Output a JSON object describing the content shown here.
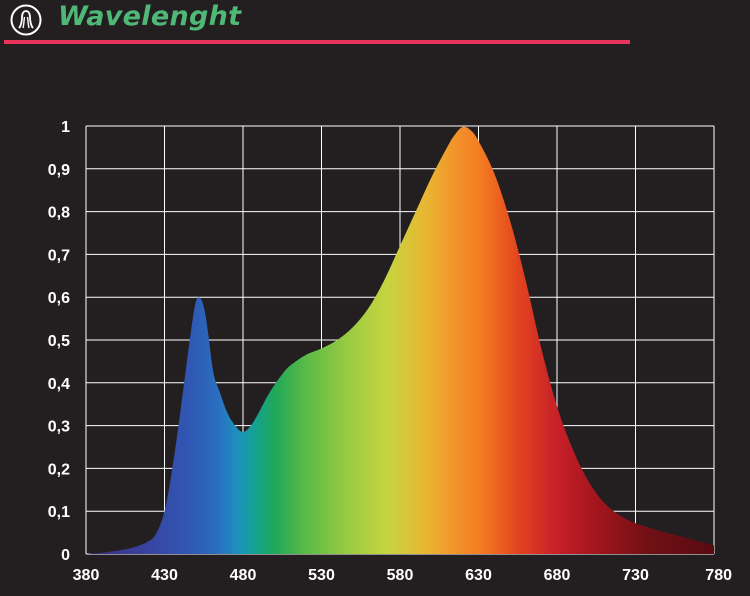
{
  "header": {
    "title": "Wavelenght",
    "title_color": "#4fb877",
    "logo_icon": "light-bulb-icon",
    "divider_color": "#e8345a"
  },
  "colors": {
    "background": "#231f20",
    "grid": "#ffffff",
    "tick_text": "#ffffff"
  },
  "chart_data": {
    "type": "area",
    "title": "",
    "xlabel": "",
    "ylabel": "",
    "xlim": [
      380,
      780
    ],
    "ylim": [
      0,
      1
    ],
    "grid": true,
    "x_ticks": [
      "380",
      "430",
      "480",
      "530",
      "580",
      "630",
      "680",
      "730",
      "780"
    ],
    "x_tick_values": [
      380,
      430,
      480,
      530,
      580,
      630,
      680,
      730,
      780
    ],
    "y_ticks": [
      "0",
      "0,1",
      "0,2",
      "0,3",
      "0,4",
      "0,5",
      "0,6",
      "0,7",
      "0,8",
      "0,9",
      "1"
    ],
    "y_tick_values": [
      0,
      0.1,
      0.2,
      0.3,
      0.4,
      0.5,
      0.6,
      0.7,
      0.8,
      0.9,
      1
    ],
    "fill": "visible-spectrum gradient",
    "series": [
      {
        "x": [
          380,
          390,
          400,
          410,
          420,
          425,
          430,
          435,
          440,
          445,
          448,
          450,
          452,
          454,
          456,
          458,
          460,
          462,
          465,
          470,
          475,
          480,
          485,
          490,
          495,
          500,
          505,
          510,
          520,
          530,
          540,
          550,
          560,
          570,
          580,
          590,
          600,
          610,
          615,
          620,
          625,
          630,
          640,
          650,
          660,
          670,
          680,
          690,
          700,
          710,
          720,
          730,
          740,
          750,
          760,
          770,
          780
        ],
        "y": [
          0.0,
          0.003,
          0.008,
          0.015,
          0.03,
          0.05,
          0.1,
          0.2,
          0.33,
          0.47,
          0.55,
          0.59,
          0.6,
          0.59,
          0.56,
          0.51,
          0.45,
          0.41,
          0.38,
          0.33,
          0.3,
          0.285,
          0.3,
          0.33,
          0.365,
          0.395,
          0.42,
          0.44,
          0.465,
          0.48,
          0.5,
          0.53,
          0.575,
          0.64,
          0.72,
          0.8,
          0.88,
          0.95,
          0.98,
          0.998,
          0.99,
          0.965,
          0.89,
          0.78,
          0.64,
          0.48,
          0.345,
          0.245,
          0.17,
          0.12,
          0.09,
          0.072,
          0.06,
          0.05,
          0.04,
          0.03,
          0.02
        ]
      }
    ]
  }
}
